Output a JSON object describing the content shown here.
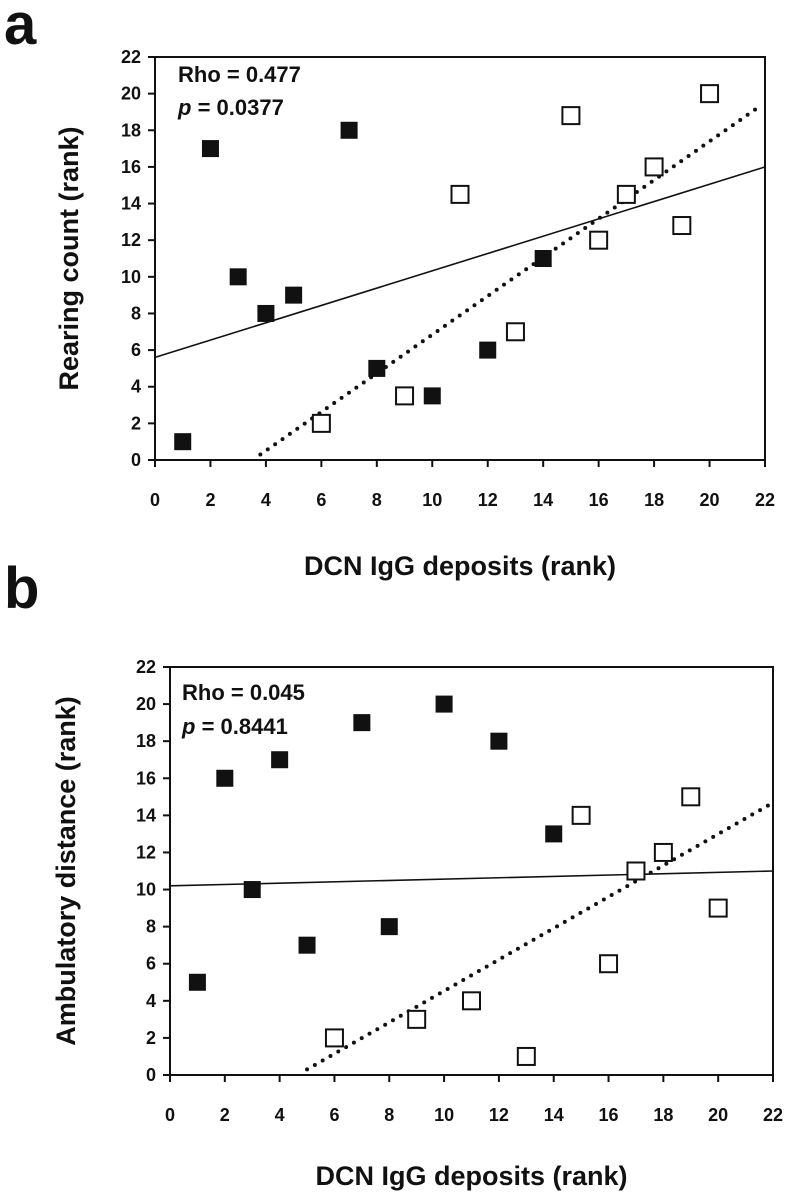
{
  "chart_data": [
    {
      "panel": "a",
      "type": "scatter",
      "xlabel": "DCN IgG deposits (rank)",
      "ylabel": "Rearing count (rank)",
      "xlim": [
        0,
        22
      ],
      "ylim": [
        0,
        22
      ],
      "xticks": [
        0,
        2,
        4,
        6,
        8,
        10,
        12,
        14,
        16,
        18,
        20,
        22
      ],
      "yticks": [
        0,
        2,
        4,
        6,
        8,
        10,
        12,
        14,
        16,
        18,
        20,
        22
      ],
      "annotation": {
        "rho": "Rho = 0.477",
        "p_label": "p",
        "p_value": " = 0.0377"
      },
      "series": [
        {
          "marker": "filled-square",
          "points": [
            [
              1,
              1
            ],
            [
              2,
              17
            ],
            [
              3,
              10
            ],
            [
              4,
              8
            ],
            [
              5,
              9
            ],
            [
              7,
              18
            ],
            [
              8,
              5
            ],
            [
              10,
              3.5
            ],
            [
              12,
              6
            ],
            [
              14,
              11
            ]
          ]
        },
        {
          "marker": "open-square",
          "points": [
            [
              6,
              2
            ],
            [
              9,
              3.5
            ],
            [
              11,
              14.5
            ],
            [
              13,
              7
            ],
            [
              15,
              18.8
            ],
            [
              16,
              12
            ],
            [
              17,
              14.5
            ],
            [
              18,
              16
            ],
            [
              19,
              12.8
            ],
            [
              20,
              20
            ]
          ]
        }
      ],
      "fit_lines": [
        {
          "style": "solid",
          "from": [
            0,
            5.6
          ],
          "to": [
            22,
            16
          ]
        },
        {
          "style": "dotted",
          "from": [
            3.8,
            0.3
          ],
          "to": [
            21.9,
            19.4
          ]
        }
      ],
      "grid": false
    },
    {
      "panel": "b",
      "type": "scatter",
      "xlabel": "DCN IgG deposits (rank)",
      "ylabel": "Ambulatory distance (rank)",
      "xlim": [
        0,
        22
      ],
      "ylim": [
        0,
        22
      ],
      "xticks": [
        0,
        2,
        4,
        6,
        8,
        10,
        12,
        14,
        16,
        18,
        20,
        22
      ],
      "yticks": [
        0,
        2,
        4,
        6,
        8,
        10,
        12,
        14,
        16,
        18,
        20,
        22
      ],
      "annotation": {
        "rho": "Rho = 0.045",
        "p_label": "p",
        "p_value": " = 0.8441"
      },
      "series": [
        {
          "marker": "filled-square",
          "points": [
            [
              1,
              5
            ],
            [
              2,
              16
            ],
            [
              3,
              10
            ],
            [
              4,
              17
            ],
            [
              5,
              7
            ],
            [
              7,
              19
            ],
            [
              8,
              8
            ],
            [
              10,
              20
            ],
            [
              12,
              18
            ],
            [
              14,
              13
            ]
          ]
        },
        {
          "marker": "open-square",
          "points": [
            [
              6,
              2
            ],
            [
              9,
              3
            ],
            [
              11,
              4
            ],
            [
              13,
              1
            ],
            [
              15,
              14
            ],
            [
              16,
              6
            ],
            [
              17,
              11
            ],
            [
              18,
              12
            ],
            [
              19,
              15
            ],
            [
              20,
              9
            ]
          ]
        }
      ],
      "fit_lines": [
        {
          "style": "solid",
          "from": [
            0,
            10.2
          ],
          "to": [
            22,
            11
          ]
        },
        {
          "style": "dotted",
          "from": [
            5,
            0.3
          ],
          "to": [
            21.9,
            14.6
          ]
        }
      ],
      "grid": false
    }
  ],
  "panel_letters": {
    "a": "a",
    "b": "b"
  }
}
